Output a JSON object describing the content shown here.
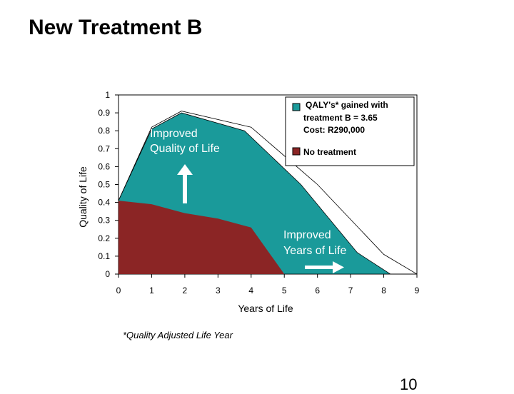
{
  "slide": {
    "title": "New Treatment B",
    "footnote": "*Quality Adjusted Life Year",
    "page_number": "10"
  },
  "chart_data": {
    "type": "area",
    "xlabel": "Years of Life",
    "ylabel": "Quality of Life",
    "xlim": [
      0,
      9
    ],
    "ylim": [
      0,
      1
    ],
    "x_ticks": [
      "0",
      "1",
      "2",
      "3",
      "4",
      "5",
      "6",
      "7",
      "8",
      "9"
    ],
    "y_ticks": [
      "0",
      "0.1",
      "0.2",
      "0.3",
      "0.4",
      "0.5",
      "0.6",
      "0.7",
      "0.8",
      "0.9",
      "1"
    ],
    "grid": false,
    "series": [
      {
        "name": "QALY's* gained with treatment B = 3.65 Cost: R290,000",
        "color": "#1a9a9a",
        "points": [
          [
            0,
            0.41
          ],
          [
            1,
            0.81
          ],
          [
            1.9,
            0.9
          ],
          [
            3.8,
            0.8
          ],
          [
            5.5,
            0.5
          ],
          [
            7.2,
            0.12
          ],
          [
            8.2,
            0
          ]
        ]
      },
      {
        "name": "No treatment",
        "color": "#8b2525",
        "points": [
          [
            0,
            0.41
          ],
          [
            1,
            0.39
          ],
          [
            2,
            0.34
          ],
          [
            3,
            0.31
          ],
          [
            4,
            0.26
          ],
          [
            5,
            0
          ]
        ]
      }
    ],
    "outline_points": [
      [
        0,
        0.41
      ],
      [
        1,
        0.82
      ],
      [
        1.9,
        0.91
      ],
      [
        4,
        0.82
      ],
      [
        6,
        0.5
      ],
      [
        8,
        0.11
      ],
      [
        9,
        0
      ]
    ],
    "legend": {
      "position": "top-right",
      "treatment_lines": [
        "QALY's* gained with",
        "treatment B = 3.65",
        "Cost: R290,000"
      ],
      "no_treatment": "No treatment"
    },
    "annotations": [
      {
        "lines": [
          "Improved",
          "Quality of Life"
        ],
        "arrow": "up"
      },
      {
        "lines": [
          "Improved",
          "Years of Life"
        ],
        "arrow": "right"
      }
    ]
  }
}
